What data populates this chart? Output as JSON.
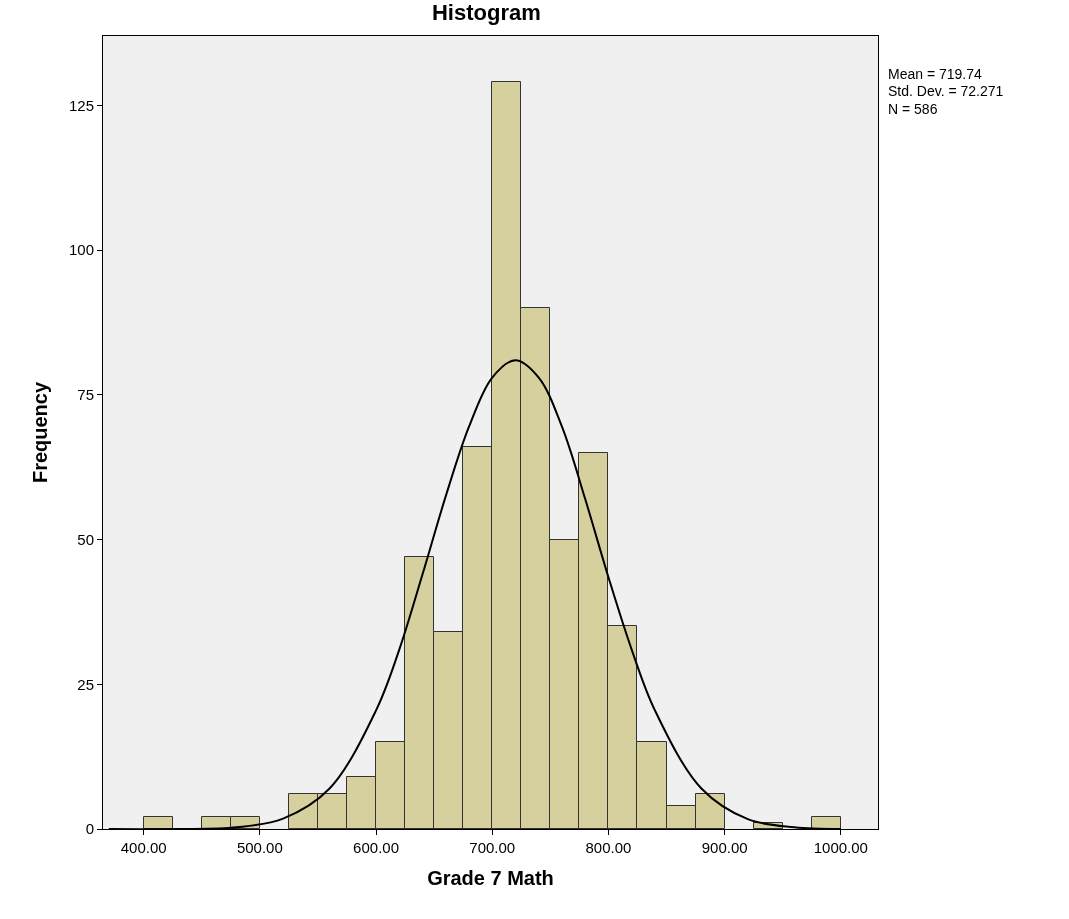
{
  "chart_data": {
    "type": "histogram",
    "title": "Histogram",
    "xlabel": "Grade 7 Math",
    "ylabel": "Frequency",
    "bins": [
      400,
      425,
      450,
      475,
      500,
      525,
      550,
      575,
      600,
      625,
      650,
      675,
      700,
      725,
      750,
      775,
      800,
      825,
      850,
      875,
      900,
      925,
      950,
      975,
      1000
    ],
    "values": [
      2,
      0,
      2,
      2,
      0,
      6,
      6,
      9,
      15,
      47,
      34,
      66,
      129,
      90,
      50,
      65,
      35,
      15,
      4,
      6,
      0,
      1,
      0,
      2
    ],
    "color": "#d6d09f",
    "series": [
      {
        "type": "line",
        "color": "#000000",
        "x": [
          370,
          430,
          480,
          520,
          560,
          600,
          620,
          640,
          660,
          680,
          700,
          720,
          740,
          760,
          780,
          800,
          820,
          840,
          880,
          920,
          960,
          1000
        ],
        "values": [
          0,
          0,
          0.3,
          1.8,
          7,
          20.5,
          31,
          44,
          57.5,
          69.5,
          78,
          81,
          78,
          69.5,
          57,
          43.5,
          31,
          20.5,
          7,
          1.7,
          0.3,
          0
        ]
      }
    ],
    "marker": "none",
    "xlim": [
      365,
      1032
    ],
    "ylim": [
      0,
      137
    ],
    "xticks": [
      {
        "value": 400,
        "label": "400.00"
      },
      {
        "value": 500,
        "label": "500.00"
      },
      {
        "value": 600,
        "label": "600.00"
      },
      {
        "value": 700,
        "label": "700.00"
      },
      {
        "value": 800,
        "label": "800.00"
      },
      {
        "value": 900,
        "label": "900.00"
      },
      {
        "value": 1000,
        "label": "1000.00"
      }
    ],
    "yticks": [
      0,
      25,
      50,
      75,
      100,
      125
    ],
    "grid": false,
    "annotations": [
      "Mean = 719.74",
      "Std. Dev. = 72.271",
      "N = 586"
    ]
  }
}
